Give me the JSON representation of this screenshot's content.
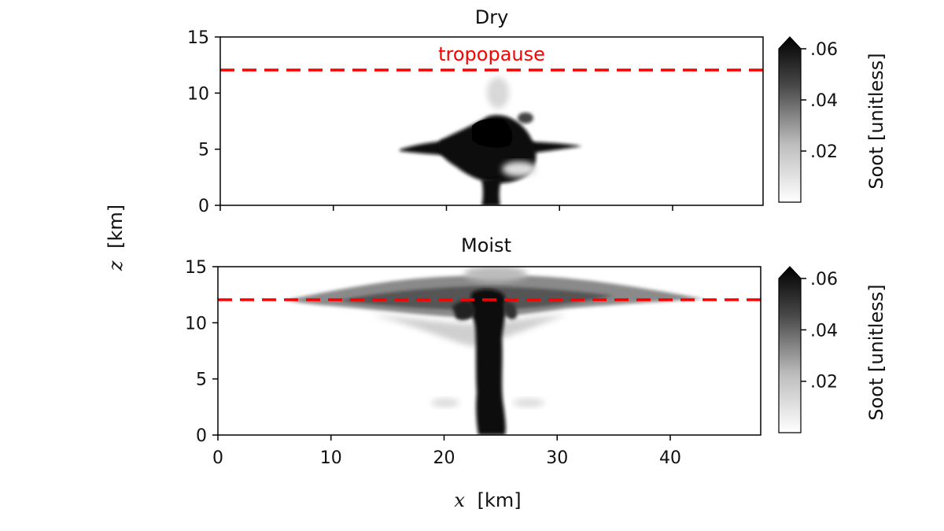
{
  "chart_data": [
    {
      "type": "heatmap",
      "title": "Dry",
      "xlabel_var": "x",
      "xlabel_unit": "[km]",
      "ylabel_var": "z",
      "ylabel_unit": "[km]",
      "xlim": [
        0,
        48
      ],
      "ylim": [
        0,
        15
      ],
      "xticks": [
        0,
        10,
        20,
        30,
        40
      ],
      "xticklabels_shown": false,
      "yticks": [
        0,
        5,
        10,
        15
      ],
      "ytick_labels": [
        "0",
        "5",
        "10",
        "15"
      ],
      "tropopause": {
        "z": 12,
        "label": "tropopause",
        "style": "dashed",
        "color": "#ff0000"
      },
      "colorbar": {
        "label": "Soot [unitless]",
        "ticks": [
          0.02,
          0.04,
          0.06
        ],
        "tick_labels": [
          ".02",
          ".04",
          ".06"
        ],
        "range": [
          0,
          0.06
        ],
        "extend": "max",
        "colormap": "white-to-black"
      },
      "plume": {
        "center_x_km": 24,
        "max_height_km": 8,
        "spread_height_km": 5,
        "spread_x_km": [
          16,
          33
        ]
      }
    },
    {
      "type": "heatmap",
      "title": "Moist",
      "xlabel_var": "x",
      "xlabel_unit": "[km]",
      "ylabel_var": "z",
      "ylabel_unit": "[km]",
      "xlim": [
        0,
        48
      ],
      "ylim": [
        0,
        15
      ],
      "xticks": [
        0,
        10,
        20,
        30,
        40
      ],
      "xtick_labels": [
        "0",
        "10",
        "20",
        "30",
        "40"
      ],
      "yticks": [
        0,
        5,
        10,
        15
      ],
      "ytick_labels": [
        "0",
        "5",
        "10",
        "15"
      ],
      "tropopause": {
        "z": 12,
        "style": "dashed",
        "color": "#ff0000"
      },
      "colorbar": {
        "label": "Soot [unitless]",
        "ticks": [
          0.02,
          0.04,
          0.06
        ],
        "tick_labels": [
          ".02",
          ".04",
          ".06"
        ],
        "range": [
          0,
          0.06
        ],
        "extend": "max",
        "colormap": "white-to-black"
      },
      "plume": {
        "center_x_km": 24,
        "max_height_km": 14.5,
        "anvil_height_km": 12,
        "anvil_x_km": [
          8,
          43
        ]
      }
    }
  ],
  "shared_axes": {
    "xlabel_var": "x",
    "xlabel_unit": "[km]",
    "ylabel_var": "z",
    "ylabel_unit": "[km]"
  }
}
